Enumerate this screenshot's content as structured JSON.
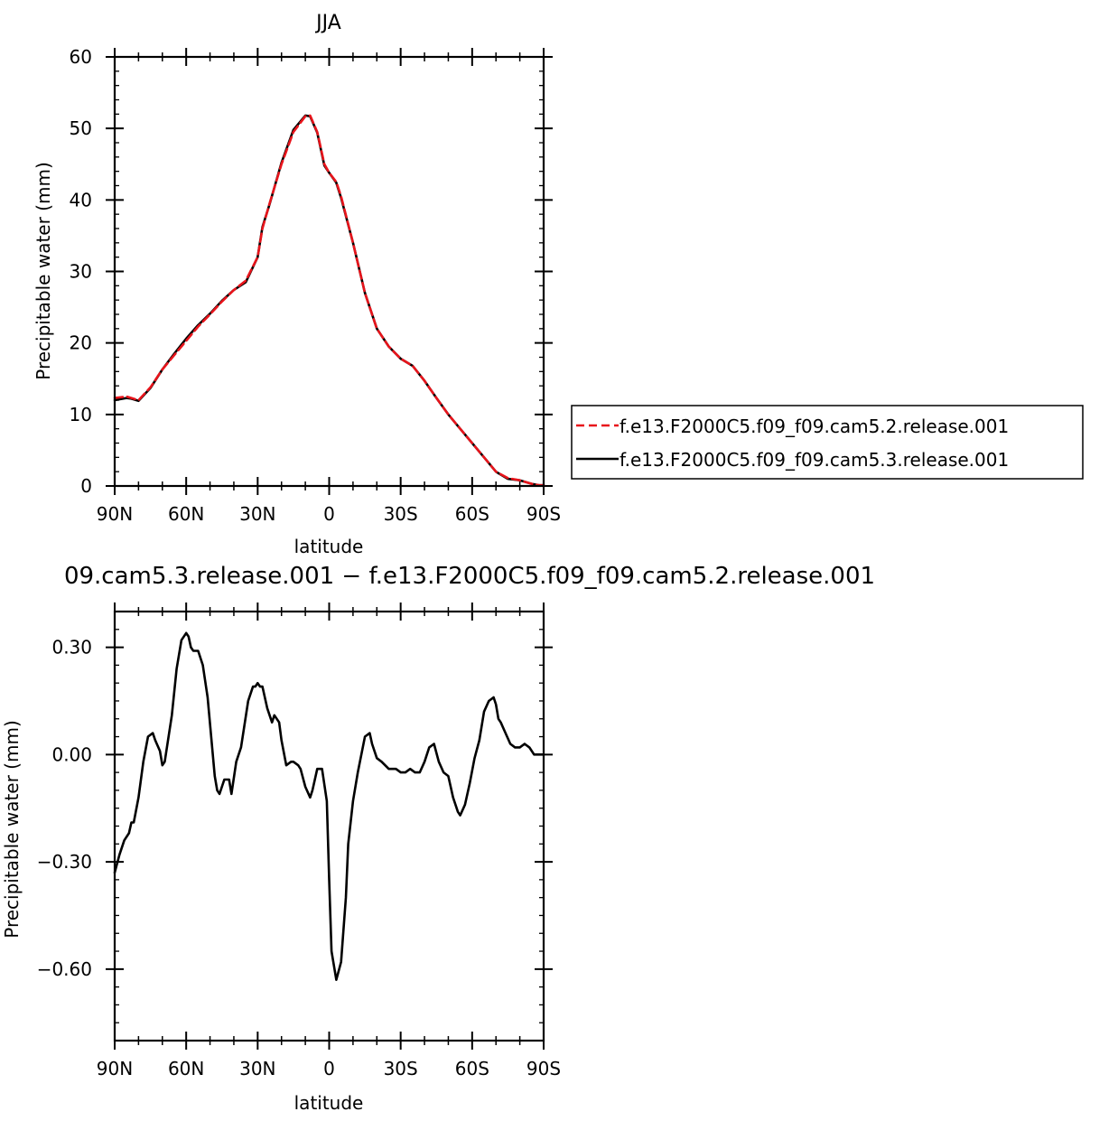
{
  "chart_data": [
    {
      "type": "line",
      "title": "JJA",
      "xlabel": "latitude",
      "ylabel": "Precipitable water (mm)",
      "xlim": [
        90,
        -90
      ],
      "ylim": [
        0,
        60
      ],
      "xticks": [
        {
          "value": 90,
          "label": "90N"
        },
        {
          "value": 60,
          "label": "60N"
        },
        {
          "value": 30,
          "label": "30N"
        },
        {
          "value": 0,
          "label": "0"
        },
        {
          "value": -30,
          "label": "30S"
        },
        {
          "value": -60,
          "label": "60S"
        },
        {
          "value": -90,
          "label": "90S"
        }
      ],
      "yticks": [
        {
          "value": 0,
          "label": "0"
        },
        {
          "value": 10,
          "label": "10"
        },
        {
          "value": 20,
          "label": "20"
        },
        {
          "value": 30,
          "label": "30"
        },
        {
          "value": 40,
          "label": "40"
        },
        {
          "value": 50,
          "label": "50"
        },
        {
          "value": 60,
          "label": "60"
        }
      ],
      "legend_position": "right",
      "series": [
        {
          "name": "f.e13.F2000C5.f09_f09.cam5.2.release.001",
          "color": "#e8141b",
          "style": "dashed",
          "x": [
            90,
            85,
            83,
            80,
            75,
            70,
            65,
            60,
            55,
            50,
            45,
            40,
            35,
            30,
            28,
            25,
            20,
            15,
            10,
            8,
            5,
            2,
            0,
            -3,
            -5,
            -10,
            -15,
            -20,
            -25,
            -30,
            -35,
            -40,
            -45,
            -50,
            -55,
            -60,
            -65,
            -70,
            -75,
            -80,
            -85,
            -88,
            -90
          ],
          "y": [
            12.3,
            12.5,
            12.3,
            12.0,
            13.8,
            16.3,
            18.3,
            20.3,
            22.3,
            24.0,
            25.8,
            27.4,
            28.7,
            32.0,
            36.0,
            39.5,
            45.0,
            49.5,
            51.7,
            51.8,
            49.5,
            45.0,
            43.8,
            42.5,
            40.5,
            34.0,
            27.0,
            22.0,
            19.5,
            17.8,
            16.8,
            14.7,
            12.3,
            10.0,
            8.0,
            6.0,
            4.0,
            2.0,
            1.1,
            0.8,
            0.3,
            0.1,
            0.1
          ]
        },
        {
          "name": "f.e13.F2000C5.f09_f09.cam5.3.release.001",
          "color": "#000000",
          "style": "solid",
          "x": [
            90,
            85,
            83,
            80,
            75,
            70,
            65,
            60,
            55,
            50,
            45,
            40,
            35,
            30,
            28,
            25,
            20,
            15,
            10,
            8,
            5,
            2,
            0,
            -3,
            -5,
            -10,
            -15,
            -20,
            -25,
            -30,
            -35,
            -40,
            -45,
            -50,
            -55,
            -60,
            -65,
            -70,
            -75,
            -80,
            -85,
            -88,
            -90
          ],
          "y": [
            12.0,
            12.3,
            12.2,
            11.9,
            13.7,
            16.3,
            18.5,
            20.6,
            22.5,
            24.1,
            25.9,
            27.4,
            28.5,
            32.0,
            36.2,
            39.4,
            45.2,
            49.8,
            51.8,
            51.7,
            49.4,
            44.8,
            43.8,
            42.4,
            40.3,
            34.0,
            27.0,
            22.0,
            19.5,
            17.8,
            16.8,
            14.7,
            12.3,
            10.0,
            8.0,
            6.0,
            4.0,
            2.0,
            1.0,
            0.8,
            0.3,
            0.1,
            0.1
          ]
        }
      ]
    },
    {
      "type": "line",
      "title": "09.cam5.3.release.001 − f.e13.F2000C5.f09_f09.cam5.2.release.001",
      "xlabel": "latitude",
      "ylabel": "Precipitable water (mm)",
      "xlim": [
        90,
        -90
      ],
      "ylim": [
        -0.8,
        0.4
      ],
      "xticks": [
        {
          "value": 90,
          "label": "90N"
        },
        {
          "value": 60,
          "label": "60N"
        },
        {
          "value": 30,
          "label": "30N"
        },
        {
          "value": 0,
          "label": "0"
        },
        {
          "value": -30,
          "label": "30S"
        },
        {
          "value": -60,
          "label": "60S"
        },
        {
          "value": -90,
          "label": "90S"
        }
      ],
      "yticks": [
        {
          "value": 0.3,
          "label": "0.30"
        },
        {
          "value": 0.0,
          "label": "0.00"
        },
        {
          "value": -0.3,
          "label": "−0.30"
        },
        {
          "value": -0.6,
          "label": "−0.60"
        }
      ],
      "series": [
        {
          "name": "",
          "color": "#000000",
          "style": "solid",
          "x": [
            90,
            88,
            86,
            84,
            83,
            82,
            80,
            78,
            76,
            74,
            73,
            71,
            70,
            69,
            66,
            64,
            62,
            60,
            59,
            58,
            57,
            55,
            53,
            51,
            48,
            47,
            46,
            44,
            42,
            41,
            39,
            37,
            34,
            32,
            31,
            30,
            29,
            28,
            26,
            24,
            23,
            21,
            20,
            18,
            16,
            15,
            13,
            12,
            10,
            8,
            7,
            5,
            3,
            1,
            0,
            -1,
            -3,
            -5,
            -7,
            -8,
            -10,
            -12,
            -15,
            -17,
            -18,
            -20,
            -22,
            -25,
            -28,
            -30,
            -32,
            -34,
            -36,
            -38,
            -40,
            -42,
            -44,
            -46,
            -48,
            -50,
            -52,
            -54,
            -55,
            -57,
            -59,
            -61,
            -63,
            -65,
            -67,
            -69,
            -70,
            -71,
            -72,
            -74,
            -76,
            -78,
            -80,
            -82,
            -84,
            -86,
            -88,
            -90
          ],
          "y": [
            -0.33,
            -0.28,
            -0.24,
            -0.22,
            -0.19,
            -0.19,
            -0.12,
            -0.02,
            0.05,
            0.06,
            0.04,
            0.01,
            -0.03,
            -0.02,
            0.11,
            0.24,
            0.32,
            0.34,
            0.33,
            0.3,
            0.29,
            0.29,
            0.25,
            0.16,
            -0.06,
            -0.1,
            -0.11,
            -0.07,
            -0.07,
            -0.11,
            -0.02,
            0.02,
            0.15,
            0.19,
            0.19,
            0.2,
            0.19,
            0.19,
            0.13,
            0.09,
            0.11,
            0.09,
            0.04,
            -0.03,
            -0.02,
            -0.02,
            -0.03,
            -0.04,
            -0.09,
            -0.12,
            -0.1,
            -0.04,
            -0.04,
            -0.13,
            -0.35,
            -0.55,
            -0.63,
            -0.58,
            -0.4,
            -0.25,
            -0.13,
            -0.05,
            0.05,
            0.06,
            0.03,
            -0.01,
            -0.02,
            -0.04,
            -0.04,
            -0.05,
            -0.05,
            -0.04,
            -0.05,
            -0.05,
            -0.02,
            0.02,
            0.03,
            -0.02,
            -0.05,
            -0.06,
            -0.12,
            -0.16,
            -0.17,
            -0.14,
            -0.08,
            -0.01,
            0.04,
            0.12,
            0.15,
            0.16,
            0.14,
            0.1,
            0.09,
            0.06,
            0.03,
            0.02,
            0.02,
            0.03,
            0.02,
            0.0,
            0.0,
            0.0
          ]
        }
      ]
    }
  ]
}
